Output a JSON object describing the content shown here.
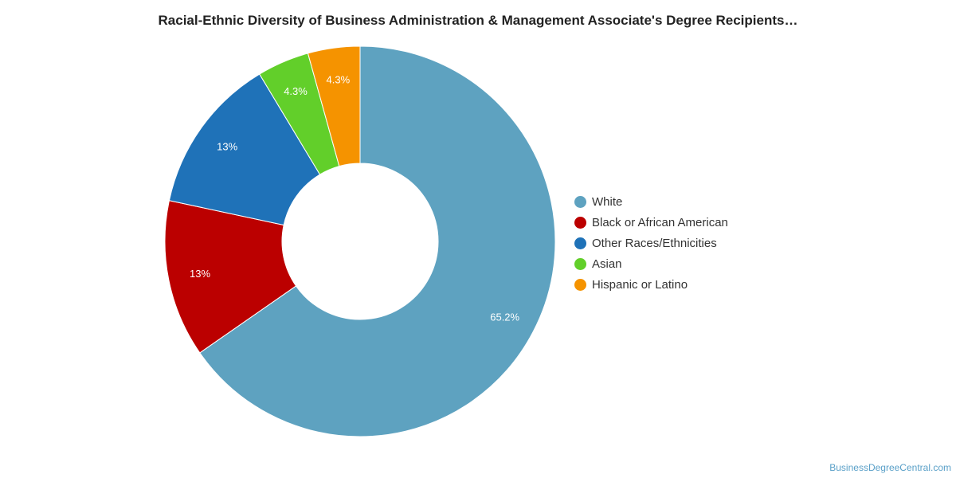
{
  "chart_data": {
    "type": "pie",
    "title": "Racial-Ethnic Diversity of Business Administration & Management Associate's Degree Recipients…",
    "donut": true,
    "legend_position": "right",
    "series": [
      {
        "slices": [
          {
            "label": "White",
            "value": 65.2,
            "display": "65.2%",
            "color": "#5ea2c0"
          },
          {
            "label": "Black or African American",
            "value": 13.0,
            "display": "13%",
            "color": "#bb0000"
          },
          {
            "label": "Other Races/Ethnicities",
            "value": 13.0,
            "display": "13%",
            "color": "#1f72b8"
          },
          {
            "label": "Asian",
            "value": 4.3,
            "display": "4.3%",
            "color": "#62cf2a"
          },
          {
            "label": "Hispanic or Latino",
            "value": 4.3,
            "display": "4.3%",
            "color": "#f59300"
          }
        ]
      }
    ]
  },
  "footer": {
    "credit": "BusinessDegreeCentral.com"
  }
}
